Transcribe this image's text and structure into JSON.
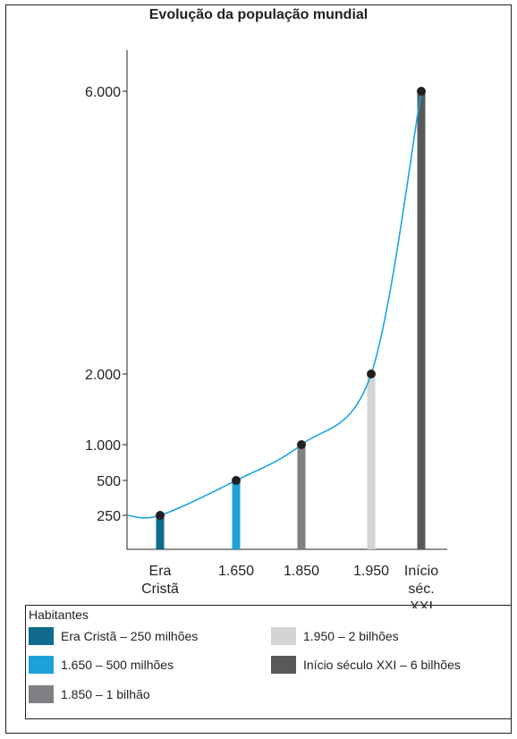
{
  "chart_data": {
    "type": "bar",
    "title": "Evolução da população mundial",
    "categories": [
      "Era Cristã",
      "1.650",
      "1.850",
      "1.950",
      "Início séc. XXI"
    ],
    "category_lines": [
      [
        "Era",
        "Cristã"
      ],
      [
        "1.650"
      ],
      [
        "1.850"
      ],
      [
        "1.950"
      ],
      [
        "Início",
        "séc.",
        "XXI"
      ]
    ],
    "values": [
      250,
      500,
      1000,
      2000,
      6000
    ],
    "y_ticks": [
      {
        "value": 250,
        "label": "250"
      },
      {
        "value": 500,
        "label": "500"
      },
      {
        "value": 1000,
        "label": "1.000"
      },
      {
        "value": 2000,
        "label": "2.000"
      },
      {
        "value": 6000,
        "label": "6.000"
      }
    ],
    "colors": [
      "#0f6a8c",
      "#1ea1d8",
      "#7f8083",
      "#d3d4d5",
      "#58595b"
    ],
    "curve_color": "#1aa5e0",
    "marker_color": "#231f20",
    "grid": false,
    "legend_position": "bottom",
    "y_scale": "non-linear"
  },
  "legend": {
    "title": "Habitantes",
    "items": [
      {
        "label": "Era Cristã – 250 milhões",
        "color": "#0f6a8c"
      },
      {
        "label": "1.950 – 2 bilhões",
        "color": "#d3d4d5"
      },
      {
        "label": "1.650 – 500 milhões",
        "color": "#1ea1d8"
      },
      {
        "label": "Início século XXI – 6 bilhões",
        "color": "#58595b"
      },
      {
        "label": "1.850 – 1 bilhão",
        "color": "#7f8083"
      }
    ]
  }
}
